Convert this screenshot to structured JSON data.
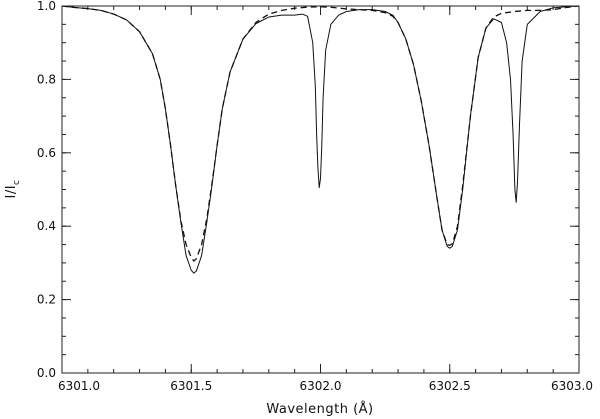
{
  "chart_data": {
    "type": "line",
    "title": "",
    "xlabel": "Wavelength (Å)",
    "ylabel_main": "I/I",
    "ylabel_sub": "c",
    "xlim": [
      6301.0,
      6303.0
    ],
    "ylim": [
      0.0,
      1.0
    ],
    "x_ticks": [
      6301.0,
      6301.5,
      6302.0,
      6302.5,
      6303.0
    ],
    "x_tick_labels": [
      "6301.0",
      "6301.5",
      "6302.0",
      "6302.5",
      "6303.0"
    ],
    "y_ticks": [
      0.0,
      0.2,
      0.4,
      0.6,
      0.8,
      1.0
    ],
    "y_tick_labels": [
      "0.0",
      "0.2",
      "0.4",
      "0.6",
      "0.8",
      "1.0"
    ],
    "x_minor_step": 0.1,
    "y_minor_step": 0.05,
    "grid": false,
    "legend": "none",
    "color": "#111111",
    "series": [
      {
        "style": "solid",
        "points": [
          [
            6301.0,
            1.0
          ],
          [
            6301.05,
            0.996
          ],
          [
            6301.1,
            0.993
          ],
          [
            6301.15,
            0.988
          ],
          [
            6301.2,
            0.978
          ],
          [
            6301.25,
            0.962
          ],
          [
            6301.3,
            0.93
          ],
          [
            6301.35,
            0.87
          ],
          [
            6301.38,
            0.8
          ],
          [
            6301.4,
            0.72
          ],
          [
            6301.42,
            0.62
          ],
          [
            6301.44,
            0.51
          ],
          [
            6301.46,
            0.41
          ],
          [
            6301.48,
            0.32
          ],
          [
            6301.5,
            0.28
          ],
          [
            6301.51,
            0.272
          ],
          [
            6301.52,
            0.278
          ],
          [
            6301.54,
            0.32
          ],
          [
            6301.56,
            0.41
          ],
          [
            6301.58,
            0.51
          ],
          [
            6301.6,
            0.62
          ],
          [
            6301.62,
            0.72
          ],
          [
            6301.65,
            0.82
          ],
          [
            6301.7,
            0.91
          ],
          [
            6301.75,
            0.952
          ],
          [
            6301.8,
            0.97
          ],
          [
            6301.85,
            0.975
          ],
          [
            6301.9,
            0.975
          ],
          [
            6301.93,
            0.978
          ],
          [
            6301.95,
            0.972
          ],
          [
            6301.97,
            0.9
          ],
          [
            6301.98,
            0.78
          ],
          [
            6301.985,
            0.65
          ],
          [
            6301.99,
            0.56
          ],
          [
            6301.995,
            0.505
          ],
          [
            6302.0,
            0.53
          ],
          [
            6302.005,
            0.62
          ],
          [
            6302.01,
            0.75
          ],
          [
            6302.02,
            0.88
          ],
          [
            6302.04,
            0.95
          ],
          [
            6302.07,
            0.975
          ],
          [
            6302.1,
            0.985
          ],
          [
            6302.15,
            0.99
          ],
          [
            6302.2,
            0.99
          ],
          [
            6302.25,
            0.985
          ],
          [
            6302.28,
            0.975
          ],
          [
            6302.3,
            0.955
          ],
          [
            6302.33,
            0.91
          ],
          [
            6302.36,
            0.84
          ],
          [
            6302.39,
            0.74
          ],
          [
            6302.42,
            0.62
          ],
          [
            6302.45,
            0.48
          ],
          [
            6302.47,
            0.39
          ],
          [
            6302.49,
            0.345
          ],
          [
            6302.5,
            0.34
          ],
          [
            6302.51,
            0.345
          ],
          [
            6302.53,
            0.39
          ],
          [
            6302.55,
            0.5
          ],
          [
            6302.58,
            0.7
          ],
          [
            6302.61,
            0.86
          ],
          [
            6302.64,
            0.94
          ],
          [
            6302.67,
            0.965
          ],
          [
            6302.7,
            0.955
          ],
          [
            6302.72,
            0.9
          ],
          [
            6302.735,
            0.8
          ],
          [
            6302.745,
            0.65
          ],
          [
            6302.752,
            0.5
          ],
          [
            6302.757,
            0.465
          ],
          [
            6302.762,
            0.52
          ],
          [
            6302.77,
            0.68
          ],
          [
            6302.78,
            0.85
          ],
          [
            6302.8,
            0.95
          ],
          [
            6302.85,
            0.985
          ],
          [
            6302.9,
            0.995
          ],
          [
            6302.95,
            0.998
          ],
          [
            6303.0,
            1.0
          ]
        ]
      },
      {
        "style": "dashed",
        "points": [
          [
            6301.0,
            1.0
          ],
          [
            6301.05,
            0.996
          ],
          [
            6301.1,
            0.993
          ],
          [
            6301.15,
            0.988
          ],
          [
            6301.2,
            0.978
          ],
          [
            6301.25,
            0.962
          ],
          [
            6301.3,
            0.93
          ],
          [
            6301.35,
            0.87
          ],
          [
            6301.38,
            0.8
          ],
          [
            6301.4,
            0.72
          ],
          [
            6301.42,
            0.62
          ],
          [
            6301.44,
            0.51
          ],
          [
            6301.46,
            0.415
          ],
          [
            6301.48,
            0.35
          ],
          [
            6301.5,
            0.315
          ],
          [
            6301.51,
            0.305
          ],
          [
            6301.52,
            0.312
          ],
          [
            6301.54,
            0.35
          ],
          [
            6301.56,
            0.42
          ],
          [
            6301.58,
            0.515
          ],
          [
            6301.6,
            0.62
          ],
          [
            6301.62,
            0.72
          ],
          [
            6301.65,
            0.82
          ],
          [
            6301.7,
            0.91
          ],
          [
            6301.75,
            0.955
          ],
          [
            6301.8,
            0.978
          ],
          [
            6301.85,
            0.988
          ],
          [
            6301.9,
            0.994
          ],
          [
            6301.95,
            0.997
          ],
          [
            6302.0,
            0.998
          ],
          [
            6302.05,
            0.996
          ],
          [
            6302.1,
            0.992
          ],
          [
            6302.15,
            0.99
          ],
          [
            6302.2,
            0.988
          ],
          [
            6302.25,
            0.982
          ],
          [
            6302.28,
            0.972
          ],
          [
            6302.3,
            0.955
          ],
          [
            6302.33,
            0.91
          ],
          [
            6302.36,
            0.84
          ],
          [
            6302.39,
            0.74
          ],
          [
            6302.42,
            0.62
          ],
          [
            6302.45,
            0.48
          ],
          [
            6302.47,
            0.39
          ],
          [
            6302.49,
            0.35
          ],
          [
            6302.5,
            0.348
          ],
          [
            6302.51,
            0.352
          ],
          [
            6302.53,
            0.4
          ],
          [
            6302.55,
            0.51
          ],
          [
            6302.58,
            0.7
          ],
          [
            6302.61,
            0.86
          ],
          [
            6302.64,
            0.94
          ],
          [
            6302.67,
            0.97
          ],
          [
            6302.7,
            0.98
          ],
          [
            6302.75,
            0.985
          ],
          [
            6302.8,
            0.988
          ],
          [
            6302.85,
            0.988
          ],
          [
            6302.9,
            0.99
          ],
          [
            6302.95,
            0.996
          ],
          [
            6303.0,
            1.0
          ]
        ]
      }
    ]
  }
}
